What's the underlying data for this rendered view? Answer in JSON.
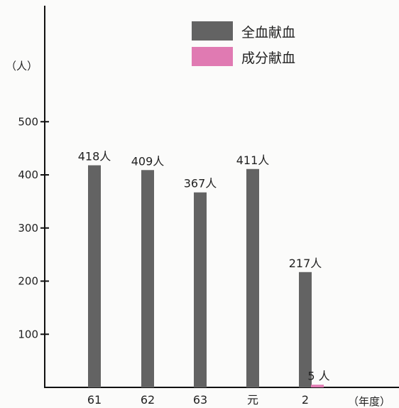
{
  "chart_data": {
    "type": "bar",
    "categories": [
      "61",
      "62",
      "63",
      "元",
      "2"
    ],
    "series": [
      {
        "name": "全血献血",
        "values": [
          418,
          409,
          367,
          411,
          217
        ],
        "value_labels": [
          "418人",
          "409人",
          "367人",
          "411人",
          "217人"
        ],
        "color": "#636363"
      },
      {
        "name": "成分献血",
        "values": [
          null,
          null,
          null,
          null,
          5
        ],
        "value_labels": [
          "",
          "",
          "",
          "",
          "5 人"
        ],
        "color": "#e07ab2"
      }
    ],
    "y_unit": "（人）",
    "x_unit": "（年度）",
    "y_ticks": [
      100,
      200,
      300,
      400,
      500
    ],
    "ylim": [
      0,
      600
    ],
    "legend_position": "top-right"
  }
}
